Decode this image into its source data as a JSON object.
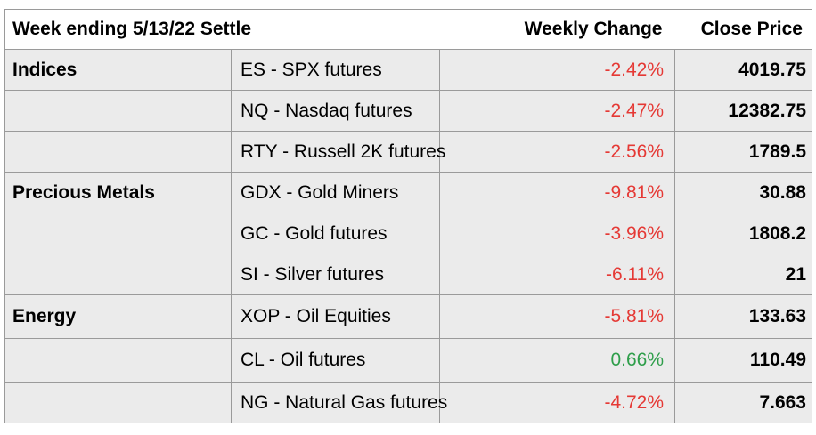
{
  "header": {
    "title": "Week ending 5/13/22 Settle",
    "weekly_change": "Weekly Change",
    "close_price": "Close Price"
  },
  "colors": {
    "negative": "#e53935",
    "positive": "#2e9e4a",
    "row_background": "#ebebeb"
  },
  "rows": [
    {
      "group": "Indices",
      "instrument": "ES - SPX futures",
      "change": "-2.42%",
      "close": "4019.75"
    },
    {
      "group": "",
      "instrument": "NQ - Nasdaq futures",
      "change": "-2.47%",
      "close": "12382.75"
    },
    {
      "group": "",
      "instrument": "RTY - Russell 2K futures",
      "change": "-2.56%",
      "close": "1789.5"
    },
    {
      "group": "Precious Metals",
      "instrument": "GDX - Gold Miners",
      "change": "-9.81%",
      "close": "30.88"
    },
    {
      "group": "",
      "instrument": "GC - Gold futures",
      "change": "-3.96%",
      "close": "1808.2"
    },
    {
      "group": "",
      "instrument": "SI - Silver futures",
      "change": "-6.11%",
      "close": "21"
    },
    {
      "group": "Energy",
      "instrument": "XOP - Oil Equities",
      "change": "-5.81%",
      "close": "133.63"
    },
    {
      "group": "",
      "instrument": "CL - Oil futures",
      "change": "0.66%",
      "close": "110.49"
    },
    {
      "group": "",
      "instrument": "NG - Natural Gas futures",
      "change": "-4.72%",
      "close": "7.663"
    }
  ]
}
